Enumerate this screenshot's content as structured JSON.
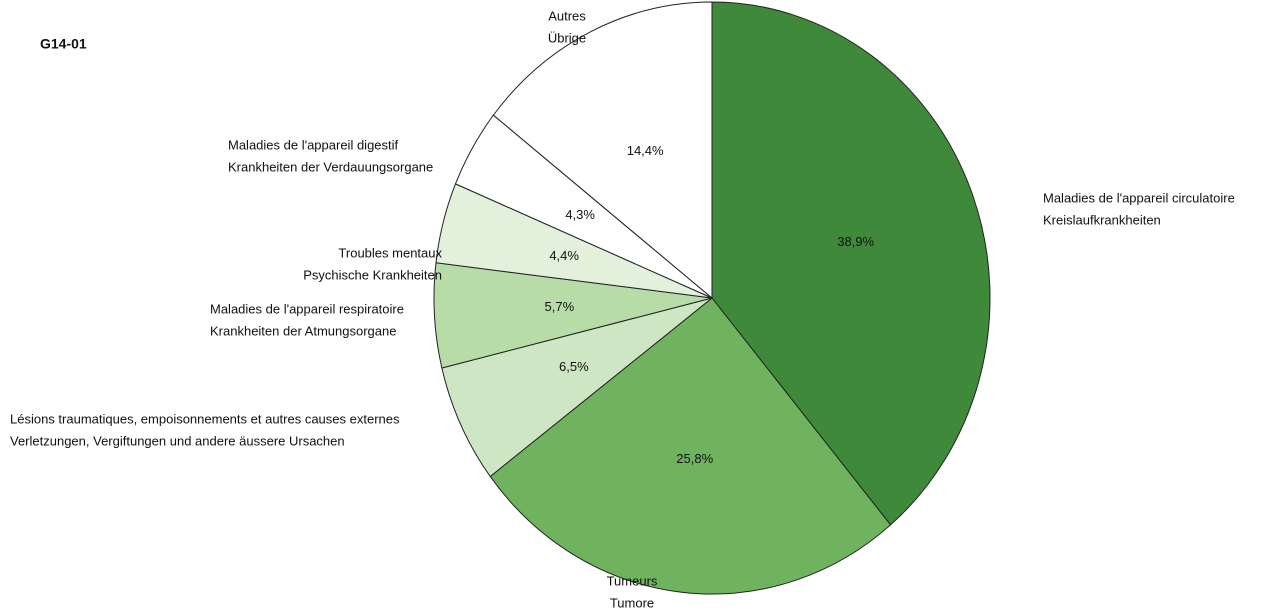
{
  "chart_data": {
    "type": "pie",
    "title": "G14-01",
    "categories": [
      [
        "Maladies de l'appareil circulatoire",
        "Kreislaufkrankheiten"
      ],
      [
        "Tumeurs",
        "Tumore"
      ],
      [
        "Lésions traumatiques, empoisonnements et autres causes externes",
        "Verletzungen, Vergiftungen und andere äussere Ursachen"
      ],
      [
        "Maladies de l'appareil respiratoire",
        "Krankheiten der Atmungsorgane"
      ],
      [
        "Troubles mentaux",
        "Psychische Krankheiten"
      ],
      [
        "Maladies de l'appareil digestif",
        "Krankheiten der Verdauungsorgane"
      ],
      [
        "Autres",
        "Übrige"
      ]
    ],
    "values": [
      38.9,
      25.8,
      6.5,
      5.7,
      4.4,
      4.3,
      14.4
    ],
    "value_labels": [
      "38,9%",
      "25,8%",
      "6,5%",
      "5,7%",
      "4,4%",
      "4,3%",
      "14,4%"
    ],
    "colors": [
      "#3f8a3a",
      "#6fb35f",
      "#cfe6c5",
      "#b7dca8",
      "#e3f1dc",
      "#ffffff",
      "#ffffff"
    ]
  }
}
